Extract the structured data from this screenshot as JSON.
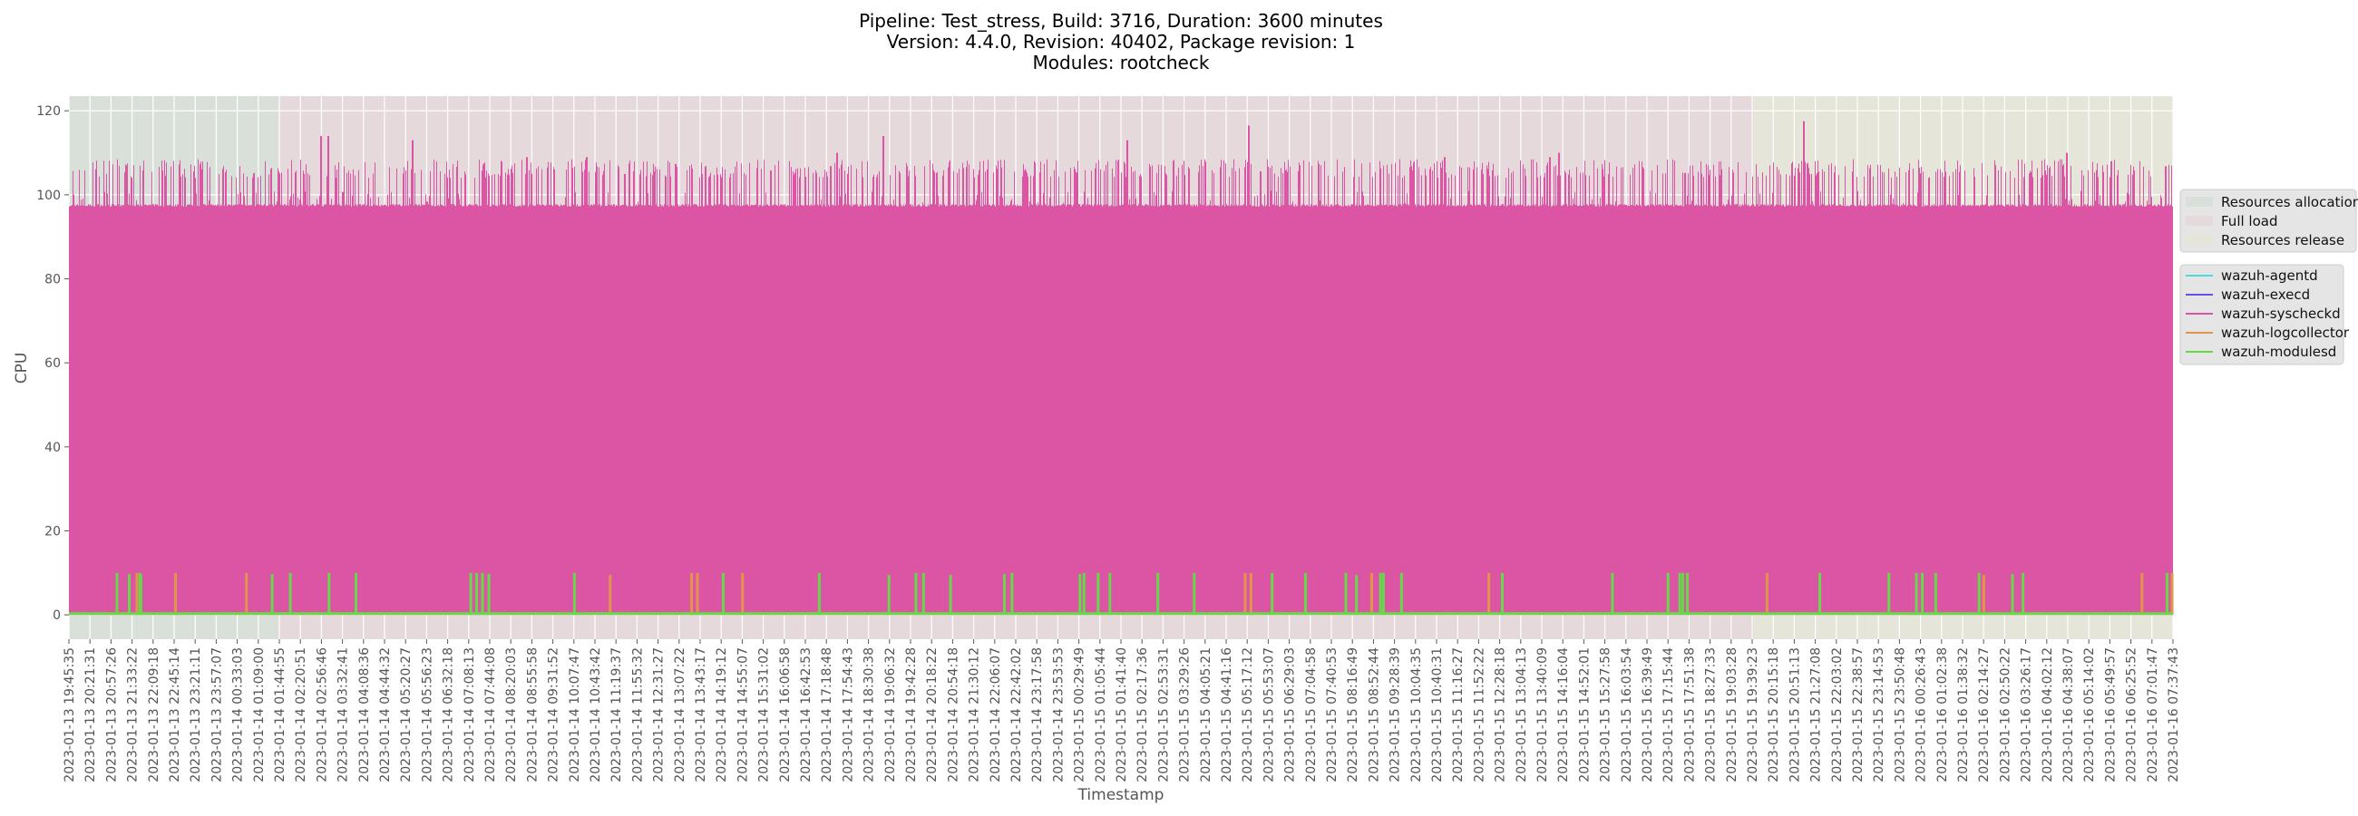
{
  "chart_data": {
    "type": "area",
    "title_lines": [
      "Pipeline: Test_stress, Build: 3716, Duration: 3600 minutes",
      "Version: 4.4.0, Revision: 40402, Package revision: 1",
      "Modules: rootcheck"
    ],
    "xlabel": "Timestamp",
    "ylabel": "CPU",
    "ylim": [
      -5.8,
      123.5
    ],
    "yticks": [
      0,
      20,
      40,
      60,
      80,
      100,
      120
    ],
    "x_unit": "minutes since 2023-01-13 19:45:35",
    "xlim_minutes": [
      0,
      3592
    ],
    "grid": true,
    "regions": [
      {
        "name": "Resources allocation",
        "start": 0,
        "end": 357,
        "color": "#d9e0da"
      },
      {
        "name": "Full load",
        "start": 357,
        "end": 2876,
        "color": "#e5d9db"
      },
      {
        "name": "Resources release",
        "start": 2876,
        "end": 3592,
        "color": "#e5e5da"
      }
    ],
    "series": [
      {
        "name": "wazuh-agentd",
        "color": "#4fd8d8",
        "baseline": 0,
        "spikes": []
      },
      {
        "name": "wazuh-execd",
        "color": "#6a4fe0",
        "baseline": 0,
        "spikes": []
      },
      {
        "name": "wazuh-syscheckd",
        "color": "#dc55a4",
        "baseline": 97.5,
        "typical_peak_range": [
          104,
          108.5
        ],
        "spikes": [
          [
            429,
            114
          ],
          [
            442,
            114
          ],
          [
            586,
            113
          ],
          [
            781,
            109
          ],
          [
            883,
            109
          ],
          [
            1310,
            110
          ],
          [
            1389,
            114
          ],
          [
            1805,
            113
          ],
          [
            2013,
            116.5
          ],
          [
            2347,
            109
          ],
          [
            2527,
            109
          ],
          [
            2542,
            110
          ],
          [
            2961,
            117.5
          ],
          [
            3410,
            110
          ]
        ]
      },
      {
        "name": "wazuh-logcollector",
        "color": "#e0944c",
        "baseline": 0.3,
        "spikes": [
          [
            116,
            10
          ],
          [
            182,
            10
          ],
          [
            303,
            10
          ],
          [
            924,
            9.5
          ],
          [
            1063,
            10
          ],
          [
            1073,
            10
          ],
          [
            1150,
            10
          ],
          [
            2008,
            10
          ],
          [
            2018,
            10
          ],
          [
            2224,
            10
          ],
          [
            2424,
            10
          ],
          [
            2899,
            10
          ],
          [
            3269,
            9.5
          ],
          [
            3539,
            10
          ],
          [
            3592,
            10
          ]
        ]
      },
      {
        "name": "wazuh-modulesd",
        "color": "#66d84a",
        "baseline": 0.3,
        "spikes": [
          [
            82,
            10
          ],
          [
            103,
            9.7
          ],
          [
            121,
            10
          ],
          [
            123,
            9.5
          ],
          [
            347,
            9.7
          ],
          [
            378,
            10
          ],
          [
            444,
            10
          ],
          [
            490,
            10
          ],
          [
            686,
            10
          ],
          [
            696,
            10
          ],
          [
            706,
            10
          ],
          [
            717,
            9.8
          ],
          [
            863,
            10
          ],
          [
            1117,
            10
          ],
          [
            1281,
            10
          ],
          [
            1400,
            9.5
          ],
          [
            1446,
            10
          ],
          [
            1459,
            10
          ],
          [
            1505,
            9.5
          ],
          [
            1597,
            9.7
          ],
          [
            1610,
            10
          ],
          [
            1726,
            9.7
          ],
          [
            1733,
            10
          ],
          [
            1757,
            10
          ],
          [
            1777,
            10
          ],
          [
            1859,
            10
          ],
          [
            1921,
            10
          ],
          [
            2054,
            10
          ],
          [
            2111,
            10
          ],
          [
            2180,
            10
          ],
          [
            2198,
            9.5
          ],
          [
            2239,
            10
          ],
          [
            2244,
            10
          ],
          [
            2275,
            10
          ],
          [
            2447,
            10
          ],
          [
            2635,
            10
          ],
          [
            2730,
            10
          ],
          [
            2750,
            10
          ],
          [
            2755,
            10
          ],
          [
            2763,
            10
          ],
          [
            2989,
            10
          ],
          [
            3107,
            10
          ],
          [
            3154,
            10
          ],
          [
            3164,
            10
          ],
          [
            3187,
            10
          ],
          [
            3261,
            10
          ],
          [
            3318,
            9.7
          ],
          [
            3336,
            10
          ],
          [
            3582,
            10
          ]
        ]
      }
    ],
    "region_legend": [
      "Resources allocation",
      "Full load",
      "Resources release"
    ],
    "series_legend": [
      "wazuh-agentd",
      "wazuh-execd",
      "wazuh-syscheckd",
      "wazuh-logcollector",
      "wazuh-modulesd"
    ],
    "xtick_labels": [
      "2023-01-13 19:45:35",
      "2023-01-13 20:21:31",
      "2023-01-13 20:57:26",
      "2023-01-13 21:33:22",
      "2023-01-13 22:09:18",
      "2023-01-13 22:45:14",
      "2023-01-13 23:21:11",
      "2023-01-13 23:57:07",
      "2023-01-14 00:33:03",
      "2023-01-14 01:09:00",
      "2023-01-14 01:44:55",
      "2023-01-14 02:20:51",
      "2023-01-14 02:56:46",
      "2023-01-14 03:32:41",
      "2023-01-14 04:08:36",
      "2023-01-14 04:44:32",
      "2023-01-14 05:20:27",
      "2023-01-14 05:56:23",
      "2023-01-14 06:32:18",
      "2023-01-14 07:08:13",
      "2023-01-14 07:44:08",
      "2023-01-14 08:20:03",
      "2023-01-14 08:55:58",
      "2023-01-14 09:31:52",
      "2023-01-14 10:07:47",
      "2023-01-14 10:43:42",
      "2023-01-14 11:19:37",
      "2023-01-14 11:55:32",
      "2023-01-14 12:31:27",
      "2023-01-14 13:07:22",
      "2023-01-14 13:43:17",
      "2023-01-14 14:19:12",
      "2023-01-14 14:55:07",
      "2023-01-14 15:31:02",
      "2023-01-14 16:06:58",
      "2023-01-14 16:42:53",
      "2023-01-14 17:18:48",
      "2023-01-14 17:54:43",
      "2023-01-14 18:30:38",
      "2023-01-14 19:06:32",
      "2023-01-14 19:42:28",
      "2023-01-14 20:18:22",
      "2023-01-14 20:54:18",
      "2023-01-14 21:30:12",
      "2023-01-14 22:06:07",
      "2023-01-14 22:42:02",
      "2023-01-14 23:17:58",
      "2023-01-14 23:53:53",
      "2023-01-15 00:29:49",
      "2023-01-15 01:05:44",
      "2023-01-15 01:41:40",
      "2023-01-15 02:17:36",
      "2023-01-15 02:53:31",
      "2023-01-15 03:29:26",
      "2023-01-15 04:05:21",
      "2023-01-15 04:41:16",
      "2023-01-15 05:17:12",
      "2023-01-15 05:53:07",
      "2023-01-15 06:29:03",
      "2023-01-15 07:04:58",
      "2023-01-15 07:40:53",
      "2023-01-15 08:16:49",
      "2023-01-15 08:52:44",
      "2023-01-15 09:28:39",
      "2023-01-15 10:04:35",
      "2023-01-15 10:40:31",
      "2023-01-15 11:16:27",
      "2023-01-15 11:52:22",
      "2023-01-15 12:28:18",
      "2023-01-15 13:04:13",
      "2023-01-15 13:40:09",
      "2023-01-15 14:16:04",
      "2023-01-15 14:52:01",
      "2023-01-15 15:27:58",
      "2023-01-15 16:03:54",
      "2023-01-15 16:39:49",
      "2023-01-15 17:15:44",
      "2023-01-15 17:51:38",
      "2023-01-15 18:27:33",
      "2023-01-15 19:03:28",
      "2023-01-15 19:39:23",
      "2023-01-15 20:15:18",
      "2023-01-15 20:51:13",
      "2023-01-15 21:27:08",
      "2023-01-15 22:03:02",
      "2023-01-15 22:38:57",
      "2023-01-15 23:14:53",
      "2023-01-15 23:50:48",
      "2023-01-16 00:26:43",
      "2023-01-16 01:02:38",
      "2023-01-16 01:38:32",
      "2023-01-16 02:14:27",
      "2023-01-16 02:50:22",
      "2023-01-16 03:26:17",
      "2023-01-16 04:02:12",
      "2023-01-16 04:38:07",
      "2023-01-16 05:14:02",
      "2023-01-16 05:49:57",
      "2023-01-16 06:25:52",
      "2023-01-16 07:01:47",
      "2023-01-16 07:37:43"
    ]
  }
}
